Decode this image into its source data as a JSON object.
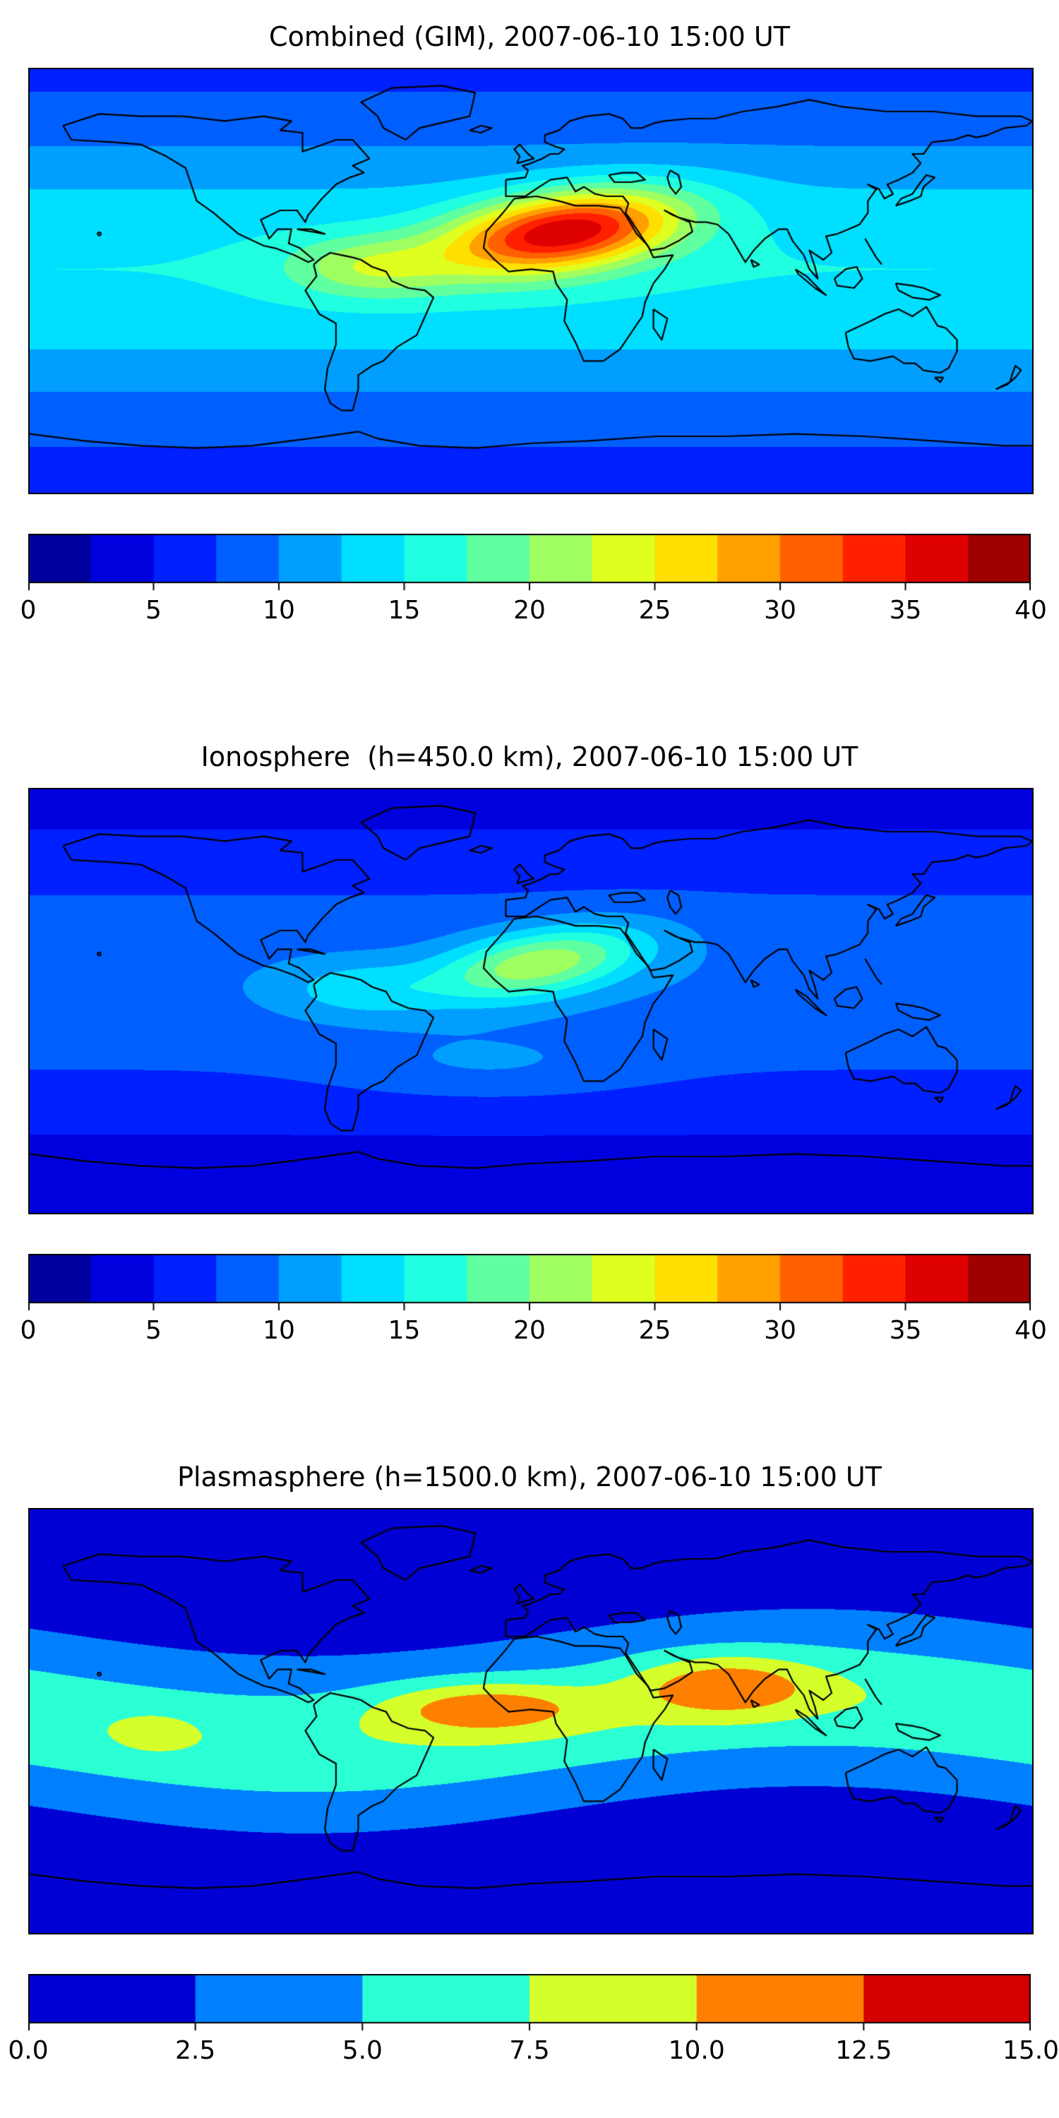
{
  "figure": {
    "background": "#ffffff",
    "n_panels": 3
  },
  "chart_data": [
    {
      "type": "heatmap",
      "title": "Combined (GIM), 2007-06-10 15:00 UT",
      "colormap": "jet",
      "projection": "equirectangular",
      "lon_range": [
        -180,
        180
      ],
      "lat_range": [
        -90,
        90
      ],
      "value_range": [
        0,
        40
      ],
      "contour_step": 2.5,
      "colorbar_ticks": [
        0,
        5,
        10,
        15,
        20,
        25,
        30,
        35,
        40
      ],
      "colorbar_tick_labels": [
        "0",
        "5",
        "10",
        "15",
        "20",
        "25",
        "30",
        "35",
        "40"
      ],
      "legend_position": "bottom",
      "grid": false,
      "peak": {
        "value": 37,
        "lon": 12,
        "lat": 21
      },
      "field_model": {
        "base": {
          "offset": 7,
          "cos_amp": 8,
          "lat_center": 5
        },
        "blobs": [
          {
            "lon": 12,
            "lat": 21,
            "amp": 23,
            "sigma_lon": 42,
            "sigma_lat": 16,
            "theta_deg": 10
          },
          {
            "lon": -58,
            "lat": 6,
            "amp": 7,
            "sigma_lon": 30,
            "sigma_lat": 13,
            "theta_deg": 0
          }
        ]
      }
    },
    {
      "type": "heatmap",
      "title": "Ionosphere  (h=450.0 km), 2007-06-10 15:00 UT",
      "colormap": "jet",
      "projection": "equirectangular",
      "lon_range": [
        -180,
        180
      ],
      "lat_range": [
        -90,
        90
      ],
      "value_range": [
        0,
        40
      ],
      "contour_step": 2.5,
      "colorbar_ticks": [
        0,
        5,
        10,
        15,
        20,
        25,
        30,
        35,
        40
      ],
      "colorbar_tick_labels": [
        "0",
        "5",
        "10",
        "15",
        "20",
        "25",
        "30",
        "35",
        "40"
      ],
      "legend_position": "bottom",
      "grid": false,
      "peak": {
        "value": 22,
        "lon": 3,
        "lat": 16
      },
      "field_model": {
        "base": {
          "offset": 4,
          "cos_amp": 5.5,
          "lat_center": 8
        },
        "blobs": [
          {
            "lon": 3,
            "lat": 16,
            "amp": 12.5,
            "sigma_lon": 38,
            "sigma_lat": 14,
            "theta_deg": 12
          },
          {
            "lon": -62,
            "lat": 5,
            "amp": 4.5,
            "sigma_lon": 28,
            "sigma_lat": 12,
            "theta_deg": 0
          },
          {
            "lon": -15,
            "lat": -28,
            "amp": 2.5,
            "sigma_lon": 55,
            "sigma_lat": 14,
            "theta_deg": 0
          }
        ]
      }
    },
    {
      "type": "heatmap",
      "title": "Plasmasphere (h=1500.0 km), 2007-06-10 15:00 UT",
      "colormap": "jet",
      "projection": "equirectangular",
      "lon_range": [
        -180,
        180
      ],
      "lat_range": [
        -90,
        90
      ],
      "value_range": [
        0,
        15
      ],
      "contour_step": 2.5,
      "colorbar_ticks": [
        0,
        2.5,
        5,
        7.5,
        10,
        12.5,
        15
      ],
      "colorbar_tick_labels": [
        "0.0",
        "2.5",
        "5.0",
        "7.5",
        "10.0",
        "12.5",
        "15.0"
      ],
      "legend_position": "bottom",
      "grid": false,
      "peak": {
        "value": 12.3,
        "lon": 70,
        "lat": 15
      },
      "field_model": {
        "base": {
          "offset": 1.3,
          "cos_amp": 0,
          "lat_center": 0
        },
        "band": {
          "amp": 5.8,
          "sigma_lat": 30,
          "equator_wave_amp": 10,
          "equator_wave_phase_deg": 10
        },
        "blobs": [
          {
            "lon": -18,
            "lat": 6,
            "amp": 5.5,
            "sigma_lon": 36,
            "sigma_lat": 11,
            "theta_deg": 0
          },
          {
            "lon": 70,
            "lat": 15,
            "amp": 5.5,
            "sigma_lon": 32,
            "sigma_lat": 13,
            "theta_deg": 0
          },
          {
            "lon": -135,
            "lat": -5,
            "amp": 1.8,
            "sigma_lon": 14,
            "sigma_lat": 8,
            "theta_deg": 0
          }
        ]
      }
    }
  ]
}
